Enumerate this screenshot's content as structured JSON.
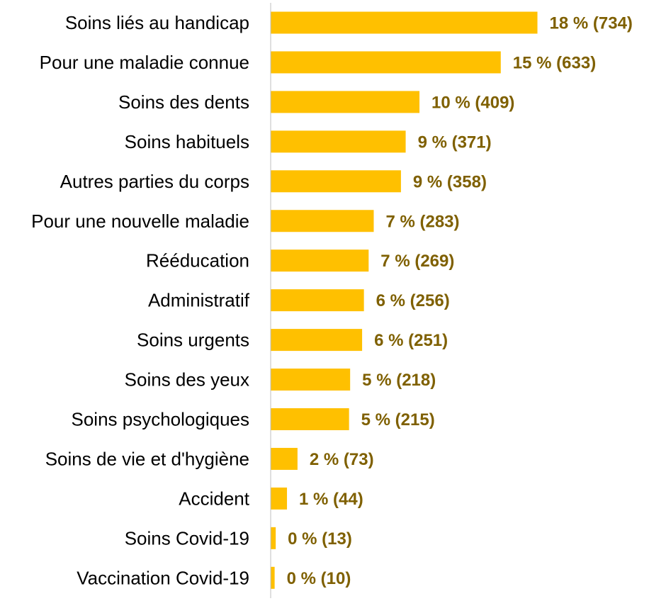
{
  "chart_data": {
    "type": "bar",
    "orientation": "horizontal",
    "categories": [
      "Soins liés au handicap",
      "Pour une maladie connue",
      "Soins des dents",
      "Soins habituels",
      "Autres parties du corps",
      "Pour une nouvelle maladie",
      "Rééducation",
      "Administratif",
      "Soins urgents",
      "Soins des yeux",
      "Soins psychologiques",
      "Soins de vie et d'hygiène",
      "Accident",
      "Soins Covid-19",
      "Vaccination Covid-19"
    ],
    "values": [
      734,
      633,
      409,
      371,
      358,
      283,
      269,
      256,
      251,
      218,
      215,
      73,
      44,
      13,
      10
    ],
    "data_labels": [
      "18 % (734)",
      "15 % (633)",
      "10 % (409)",
      "9 % (371)",
      "9 % (358)",
      "7 % (283)",
      "7 % (269)",
      "6 % (256)",
      "6 % (251)",
      "5 % (218)",
      "5 % (215)",
      "2 % (73)",
      "1 % (44)",
      "0 % (13)",
      "0 % (10)"
    ],
    "title": "",
    "xlabel": "",
    "ylabel": "",
    "grid": false,
    "legend": "none",
    "colors": {
      "bar": "#FFC000",
      "value_label": "#7F6000",
      "axis_line": "#BFBFBF",
      "category_label": "#000000"
    }
  }
}
